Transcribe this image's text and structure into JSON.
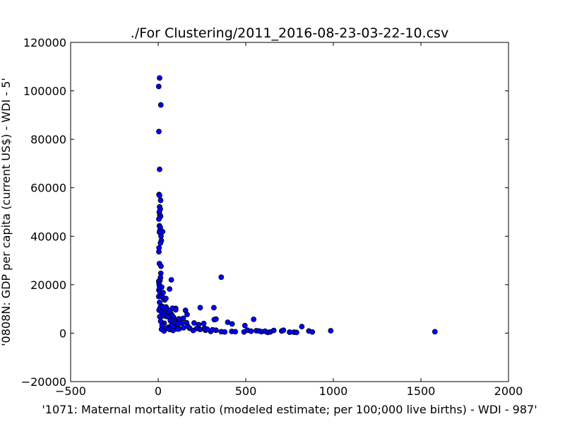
{
  "chart_data": {
    "type": "scatter",
    "title": "./For Clustering/2011_2016-08-23-03-22-10.csv",
    "xlabel": "'1071: Maternal mortality ratio  (modeled estimate; per 100;000 live births) - WDI - 987'",
    "ylabel": "'0808N: GDP per capita  (current US$) - WDI - 5'",
    "xlim": [
      -500,
      2000
    ],
    "ylim": [
      -20000,
      120000
    ],
    "xticks": [
      "−500",
      "0",
      "500",
      "1000",
      "1500",
      "2000"
    ],
    "yticks": [
      "−20000",
      "0",
      "20000",
      "40000",
      "60000",
      "80000",
      "100000",
      "120000"
    ],
    "grid": false,
    "marker_color": "#0000ff",
    "marker_edge": "#000000",
    "points": [
      [
        8,
        105300
      ],
      [
        3,
        101800
      ],
      [
        15,
        94200
      ],
      [
        4,
        83200
      ],
      [
        8,
        67600
      ],
      [
        5,
        57200
      ],
      [
        8,
        56800
      ],
      [
        14,
        54800
      ],
      [
        8,
        52100
      ],
      [
        12,
        51200
      ],
      [
        6,
        50000
      ],
      [
        9,
        48800
      ],
      [
        14,
        48200
      ],
      [
        4,
        47100
      ],
      [
        7,
        44300
      ],
      [
        12,
        43600
      ],
      [
        10,
        42400
      ],
      [
        25,
        41900
      ],
      [
        7,
        41700
      ],
      [
        16,
        40000
      ],
      [
        18,
        38200
      ],
      [
        13,
        37200
      ],
      [
        5,
        35200
      ],
      [
        4,
        33600
      ],
      [
        7,
        28700
      ],
      [
        16,
        27600
      ],
      [
        15,
        24700
      ],
      [
        13,
        22900
      ],
      [
        10,
        21700
      ],
      [
        3,
        21400
      ],
      [
        5,
        20200
      ],
      [
        7,
        19400
      ],
      [
        20,
        19000
      ],
      [
        4,
        17800
      ],
      [
        9,
        17100
      ],
      [
        3,
        15100
      ],
      [
        20,
        15100
      ],
      [
        28,
        14600
      ],
      [
        8,
        12700
      ],
      [
        37,
        13700
      ],
      [
        22,
        11100
      ],
      [
        11,
        10600
      ],
      [
        30,
        10500
      ],
      [
        45,
        10800
      ],
      [
        53,
        9700
      ],
      [
        68,
        9300
      ],
      [
        82,
        10300
      ],
      [
        100,
        10200
      ],
      [
        100,
        9600
      ],
      [
        5,
        9500
      ],
      [
        20,
        8600
      ],
      [
        38,
        8300
      ],
      [
        59,
        8000
      ],
      [
        75,
        7800
      ],
      [
        156,
        9400
      ],
      [
        165,
        7700
      ],
      [
        240,
        10500
      ],
      [
        318,
        10500
      ],
      [
        46,
        6900
      ],
      [
        58,
        6700
      ],
      [
        80,
        7300
      ],
      [
        87,
        6600
      ],
      [
        25,
        7100
      ],
      [
        70,
        5100
      ],
      [
        103,
        5500
      ],
      [
        119,
        5900
      ],
      [
        143,
        6100
      ],
      [
        135,
        4100
      ],
      [
        34,
        4100
      ],
      [
        97,
        4400
      ],
      [
        113,
        3700
      ],
      [
        162,
        4300
      ],
      [
        205,
        4200
      ],
      [
        260,
        4000
      ],
      [
        231,
        3500
      ],
      [
        320,
        5600
      ],
      [
        330,
        5800
      ],
      [
        397,
        4500
      ],
      [
        422,
        3800
      ],
      [
        545,
        5700
      ],
      [
        495,
        3100
      ],
      [
        120,
        1800
      ],
      [
        180,
        2000
      ],
      [
        220,
        1900
      ],
      [
        270,
        1200
      ],
      [
        300,
        700
      ],
      [
        360,
        600
      ],
      [
        380,
        500
      ],
      [
        420,
        700
      ],
      [
        440,
        600
      ],
      [
        490,
        500
      ],
      [
        510,
        1200
      ],
      [
        530,
        800
      ],
      [
        560,
        1000
      ],
      [
        575,
        900
      ],
      [
        590,
        600
      ],
      [
        610,
        800
      ],
      [
        625,
        300
      ],
      [
        640,
        500
      ],
      [
        660,
        1100
      ],
      [
        705,
        900
      ],
      [
        715,
        1200
      ],
      [
        750,
        400
      ],
      [
        775,
        400
      ],
      [
        790,
        300
      ],
      [
        820,
        2700
      ],
      [
        860,
        900
      ],
      [
        880,
        500
      ],
      [
        985,
        1000
      ],
      [
        1580,
        600
      ],
      [
        19,
        1600
      ],
      [
        33,
        900
      ],
      [
        58,
        2400
      ],
      [
        75,
        3100
      ],
      [
        90,
        2300
      ],
      [
        110,
        1700
      ],
      [
        145,
        2200
      ],
      [
        170,
        2800
      ],
      [
        200,
        1100
      ],
      [
        240,
        1500
      ],
      [
        265,
        2100
      ],
      [
        280,
        1600
      ],
      [
        310,
        1400
      ],
      [
        330,
        1200
      ],
      [
        360,
        23100
      ],
      [
        75,
        22000
      ],
      [
        65,
        18200
      ],
      [
        28,
        16700
      ],
      [
        44,
        14300
      ],
      [
        9,
        6800
      ],
      [
        14,
        4900
      ],
      [
        22,
        3200
      ],
      [
        48,
        2000
      ],
      [
        65,
        1500
      ],
      [
        85,
        1100
      ]
    ]
  }
}
